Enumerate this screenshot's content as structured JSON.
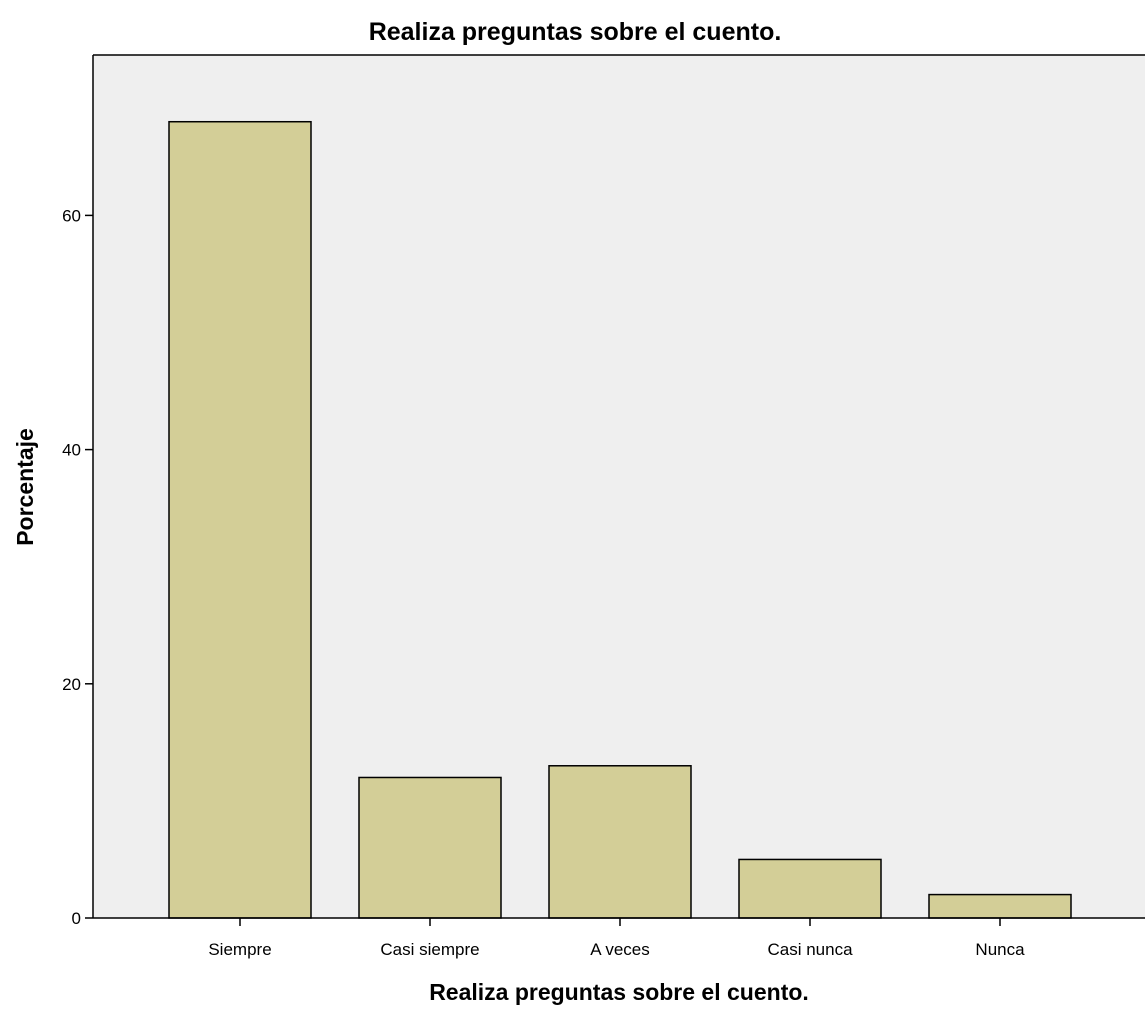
{
  "chart_data": {
    "type": "bar",
    "title": "Realiza preguntas sobre el cuento.",
    "xlabel": "Realiza preguntas sobre el cuento.",
    "ylabel": "Porcentaje",
    "categories": [
      "Siempre",
      "Casi siempre",
      "A veces",
      "Casi nunca",
      "Nunca"
    ],
    "values": [
      68,
      12,
      13,
      5,
      2
    ],
    "ylim": [
      0,
      74
    ],
    "yticks": [
      "0",
      "20",
      "40",
      "60"
    ],
    "grid": false,
    "legend": "none",
    "colors": {
      "plot_background": "#efefef",
      "bar_fill": "#d3ce97",
      "bar_stroke": "#000000",
      "axis": "#000000"
    }
  }
}
